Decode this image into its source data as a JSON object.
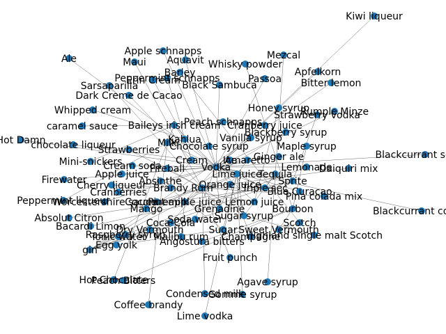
{
  "graph": {
    "node_color": "#1f77b4",
    "label_color": "#000000",
    "edge_color": "#000000",
    "nodes": [
      {
        "id": "kiwi_liqueur",
        "label": "Kiwi liqueur"
      },
      {
        "id": "apple_schnapps",
        "label": "Apple schnapps"
      },
      {
        "id": "mezcal",
        "label": "Mezcal"
      },
      {
        "id": "ale",
        "label": "Ale"
      },
      {
        "id": "maui",
        "label": "Maui"
      },
      {
        "id": "aquavit",
        "label": "Aquavit"
      },
      {
        "id": "whisky_powder",
        "label": "Whisky powder"
      },
      {
        "id": "apfelkorn",
        "label": "Apfelkorn"
      },
      {
        "id": "peppermint_schnapps",
        "label": "Peppermint schnapps"
      },
      {
        "id": "barley",
        "label": "Barley"
      },
      {
        "id": "sarsaparilla",
        "label": "Sarsaparilla"
      },
      {
        "id": "passoa",
        "label": "Passoa"
      },
      {
        "id": "bitter_lemon",
        "label": "Bitter lemon"
      },
      {
        "id": "whipped_cream",
        "label": "Whipped cream"
      },
      {
        "id": "caramel_sauce",
        "label": "caramel sauce"
      },
      {
        "id": "hot_damn",
        "label": "Hot Damn"
      },
      {
        "id": "chocolate_liqueur",
        "label": "chocolate liqueur"
      },
      {
        "id": "mini_snickers",
        "label": "Mini-snickers"
      },
      {
        "id": "fireball",
        "label": "Fireball"
      },
      {
        "id": "firewater",
        "label": "Firewater"
      },
      {
        "id": "peppermint_liqueur",
        "label": "Peppermint liqueur"
      },
      {
        "id": "absolut_citron",
        "label": "Absolut Citron"
      },
      {
        "id": "bacardi_limon",
        "label": "Bacardi Limon"
      },
      {
        "id": "raspberry_syrup",
        "label": "Raspberry syrup"
      },
      {
        "id": "gin",
        "label": "gin"
      },
      {
        "id": "egg_yolk",
        "label": "Egg yolk"
      },
      {
        "id": "hot_chocolate",
        "label": "Hot Chocolate"
      },
      {
        "id": "peach_bitters",
        "label": "Peach Bitters"
      },
      {
        "id": "coffee_brandy",
        "label": "Coffee brandy"
      },
      {
        "id": "condensed_milk",
        "label": "Condensed milk"
      },
      {
        "id": "gomme_syrup",
        "label": "Gomme syrup"
      },
      {
        "id": "lime_vodka",
        "label": "Lime vodka"
      },
      {
        "id": "agave_syrup",
        "label": "Agave syrup"
      },
      {
        "id": "blackcurrant_cordial",
        "label": "Blackcurrant cordial"
      },
      {
        "id": "blackcurrant_squash",
        "label": "Blackcurrant squash"
      },
      {
        "id": "daiquiri_mix",
        "label": "Daiquiri mix"
      },
      {
        "id": "pina_colada_mix",
        "label": "Pina colada mix"
      },
      {
        "id": "highland_single_malt",
        "label": "Highland single malt Scotch"
      },
      {
        "id": "angostura_bitters",
        "label": "Angostura bitters"
      },
      {
        "id": "cranberries",
        "label": "Cranberries"
      },
      {
        "id": "worcestershire_sauce",
        "label": "Worcestershire sauce"
      },
      {
        "id": "cherry_liqueur",
        "label": "Cherry liqueur"
      },
      {
        "id": "cream_soda",
        "label": "Cream soda"
      },
      {
        "id": "strawberries",
        "label": "Strawberries"
      },
      {
        "id": "apple_juice",
        "label": "Apple juice"
      },
      {
        "id": "mango",
        "label": "Mango"
      },
      {
        "id": "absinthe",
        "label": "Absinthe"
      },
      {
        "id": "vanilla_syrup",
        "label": "Vanilla syrup"
      },
      {
        "id": "peach_schnapps",
        "label": "Peach schnapps"
      },
      {
        "id": "chocolate_syrup",
        "label": "Chocolate syrup"
      },
      {
        "id": "amaretto",
        "label": "Amaretto"
      },
      {
        "id": "cream",
        "label": "Cream"
      },
      {
        "id": "orange_juice",
        "label": "Orange juice"
      },
      {
        "id": "lemon_juice",
        "label": "Lemon juice"
      },
      {
        "id": "lime_juice",
        "label": "Lime juice"
      },
      {
        "id": "vodka",
        "label": "Vodka"
      },
      {
        "id": "tequila",
        "label": "Tequila"
      },
      {
        "id": "rum",
        "label": "Rum"
      },
      {
        "id": "sugar_syrup",
        "label": "Sugar syrup"
      },
      {
        "id": "grenadine",
        "label": "Grenadine"
      },
      {
        "id": "triple_sec",
        "label": "Triple sec"
      },
      {
        "id": "pineapple_juice",
        "label": "Pineapple juice"
      },
      {
        "id": "ginger_ale",
        "label": "Ginger ale"
      },
      {
        "id": "kahlua",
        "label": "Kahlua"
      },
      {
        "id": "baileys",
        "label": "Baileys irish cream"
      },
      {
        "id": "milk",
        "label": "Milk"
      },
      {
        "id": "sugar",
        "label": "Sugar"
      },
      {
        "id": "ice",
        "label": "Ice"
      },
      {
        "id": "soda_water",
        "label": "Soda water"
      },
      {
        "id": "coca_cola",
        "label": "Coca-Cola"
      },
      {
        "id": "bourbon",
        "label": "Bourbon"
      },
      {
        "id": "scotch",
        "label": "Scotch"
      },
      {
        "id": "brandy",
        "label": "Brandy"
      },
      {
        "id": "champagne",
        "label": "Champagne"
      },
      {
        "id": "dry_vermouth",
        "label": "Dry Vermouth"
      },
      {
        "id": "sweet_vermouth",
        "label": "Sweet Vermouth"
      },
      {
        "id": "blue_curacao",
        "label": "Blue Curacao"
      },
      {
        "id": "malibu_rum",
        "label": "Malibu rum"
      },
      {
        "id": "coconut_milk",
        "label": "Coconut milk"
      },
      {
        "id": "sprite",
        "label": "Sprite"
      },
      {
        "id": "tonic_water",
        "label": "Tonic water"
      },
      {
        "id": "lemonade",
        "label": "Lemonade"
      },
      {
        "id": "cranberry_juice",
        "label": "Cranberry juice"
      },
      {
        "id": "blackberry_syrup",
        "label": "Blackberry syrup"
      },
      {
        "id": "maple_syrup",
        "label": "Maple syrup"
      },
      {
        "id": "honey_syrup",
        "label": "Honey syrup"
      },
      {
        "id": "dark_creme",
        "label": "Dark Creme de Cacao"
      },
      {
        "id": "black_sambuca",
        "label": "Black Sambuca"
      },
      {
        "id": "strawberry_vodka",
        "label": "Strawberry vodka"
      },
      {
        "id": "rumple_minze",
        "label": "Rumple Minze"
      },
      {
        "id": "fruit_punch",
        "label": "Fruit punch"
      },
      {
        "id": "erin_cream",
        "label": "Erin Cream"
      }
    ],
    "edges": [
      [
        "apple_schnapps",
        "vodka"
      ],
      [
        "kiwi_liqueur",
        "vodka"
      ],
      [
        "mezcal",
        "tequila"
      ],
      [
        "ale",
        "vodka"
      ],
      [
        "maui",
        "rum"
      ],
      [
        "aquavit",
        "vodka"
      ],
      [
        "whisky_powder",
        "bourbon"
      ],
      [
        "apfelkorn",
        "vodka"
      ],
      [
        "peppermint_schnapps",
        "kahlua"
      ],
      [
        "barley",
        "scotch"
      ],
      [
        "sarsaparilla",
        "rum"
      ],
      [
        "passoa",
        "vodka"
      ],
      [
        "bitter_lemon",
        "gin"
      ],
      [
        "whipped_cream",
        "kahlua"
      ],
      [
        "caramel_sauce",
        "baileys"
      ],
      [
        "hot_damn",
        "vodka"
      ],
      [
        "chocolate_liqueur",
        "cream"
      ],
      [
        "mini_snickers",
        "baileys"
      ],
      [
        "fireball",
        "rum"
      ],
      [
        "firewater",
        "vodka"
      ],
      [
        "peppermint_liqueur",
        "milk"
      ],
      [
        "absolut_citron",
        "triple_sec"
      ],
      [
        "bacardi_limon",
        "sprite"
      ],
      [
        "raspberry_syrup",
        "lemonade"
      ],
      [
        "gin",
        "tonic_water"
      ],
      [
        "egg_yolk",
        "sugar"
      ],
      [
        "hot_chocolate",
        "baileys"
      ],
      [
        "peach_bitters",
        "bourbon"
      ],
      [
        "coffee_brandy",
        "milk"
      ],
      [
        "condensed_milk",
        "rum"
      ],
      [
        "gomme_syrup",
        "lime_juice"
      ],
      [
        "lime_vodka",
        "lime_juice"
      ],
      [
        "agave_syrup",
        "tequila"
      ],
      [
        "blackcurrant_cordial",
        "vodka"
      ],
      [
        "blackcurrant_squash",
        "vodka"
      ],
      [
        "daiquiri_mix",
        "rum"
      ],
      [
        "pina_colada_mix",
        "rum"
      ],
      [
        "highland_single_malt",
        "sugar_syrup"
      ],
      [
        "angostura_bitters",
        "bourbon"
      ],
      [
        "cranberries",
        "vodka"
      ],
      [
        "worcestershire_sauce",
        "vodka"
      ],
      [
        "cherry_liqueur",
        "brandy"
      ],
      [
        "cream_soda",
        "vodka"
      ],
      [
        "strawberries",
        "rum"
      ],
      [
        "apple_juice",
        "vodka"
      ],
      [
        "mango",
        "rum"
      ],
      [
        "absinthe",
        "sugar"
      ],
      [
        "vanilla_syrup",
        "vodka"
      ],
      [
        "peach_schnapps",
        "cranberry_juice"
      ],
      [
        "chocolate_syrup",
        "milk"
      ],
      [
        "amaretto",
        "orange_juice"
      ],
      [
        "cream",
        "kahlua"
      ],
      [
        "orange_juice",
        "vodka"
      ],
      [
        "lemon_juice",
        "sugar_syrup"
      ],
      [
        "lime_juice",
        "tequila"
      ],
      [
        "vodka",
        "cranberry_juice"
      ],
      [
        "tequila",
        "triple_sec"
      ],
      [
        "rum",
        "coca_cola"
      ],
      [
        "sugar_syrup",
        "lime_juice"
      ],
      [
        "grenadine",
        "orange_juice"
      ],
      [
        "triple_sec",
        "lime_juice"
      ],
      [
        "pineapple_juice",
        "rum"
      ],
      [
        "ginger_ale",
        "vodka"
      ],
      [
        "kahlua",
        "vodka"
      ],
      [
        "baileys",
        "kahlua"
      ],
      [
        "milk",
        "kahlua"
      ],
      [
        "sugar",
        "lime_juice"
      ],
      [
        "ice",
        "vodka"
      ],
      [
        "soda_water",
        "gin"
      ],
      [
        "bourbon",
        "sweet_vermouth"
      ],
      [
        "scotch",
        "sweet_vermouth"
      ],
      [
        "brandy",
        "cream"
      ],
      [
        "champagne",
        "orange_juice"
      ],
      [
        "dry_vermouth",
        "gin"
      ],
      [
        "blue_curacao",
        "vodka"
      ],
      [
        "malibu_rum",
        "pineapple_juice"
      ],
      [
        "coconut_milk",
        "rum"
      ],
      [
        "sprite",
        "vodka"
      ],
      [
        "lemonade",
        "vodka"
      ],
      [
        "blackberry_syrup",
        "gin"
      ],
      [
        "maple_syrup",
        "bourbon"
      ],
      [
        "honey_syrup",
        "lemon_juice"
      ],
      [
        "dark_creme",
        "cream"
      ],
      [
        "black_sambuca",
        "vodka"
      ],
      [
        "strawberry_vodka",
        "sprite"
      ],
      [
        "rumple_minze",
        "vodka"
      ],
      [
        "fruit_punch",
        "rum"
      ],
      [
        "erin_cream",
        "kahlua"
      ],
      [
        "vodka",
        "lime_juice"
      ],
      [
        "rum",
        "lime_juice"
      ],
      [
        "gin",
        "lime_juice"
      ],
      [
        "tequila",
        "lemon_juice"
      ],
      [
        "vodka",
        "triple_sec"
      ],
      [
        "rum",
        "sugar_syrup"
      ],
      [
        "gin",
        "lemon_juice"
      ],
      [
        "vodka",
        "grenadine"
      ],
      [
        "rum",
        "grenadine"
      ],
      [
        "vodka",
        "pineapple_juice"
      ],
      [
        "vodka",
        "soda_water"
      ],
      [
        "rum",
        "orange_juice"
      ],
      [
        "gin",
        "triple_sec"
      ],
      [
        "brandy",
        "lemon_juice"
      ],
      [
        "vodka",
        "lemon_juice"
      ],
      [
        "rum",
        "triple_sec"
      ],
      [
        "kahlua",
        "cream"
      ],
      [
        "baileys",
        "vodka"
      ],
      [
        "amaretto",
        "vodka"
      ],
      [
        "milk",
        "vodka"
      ]
    ]
  }
}
